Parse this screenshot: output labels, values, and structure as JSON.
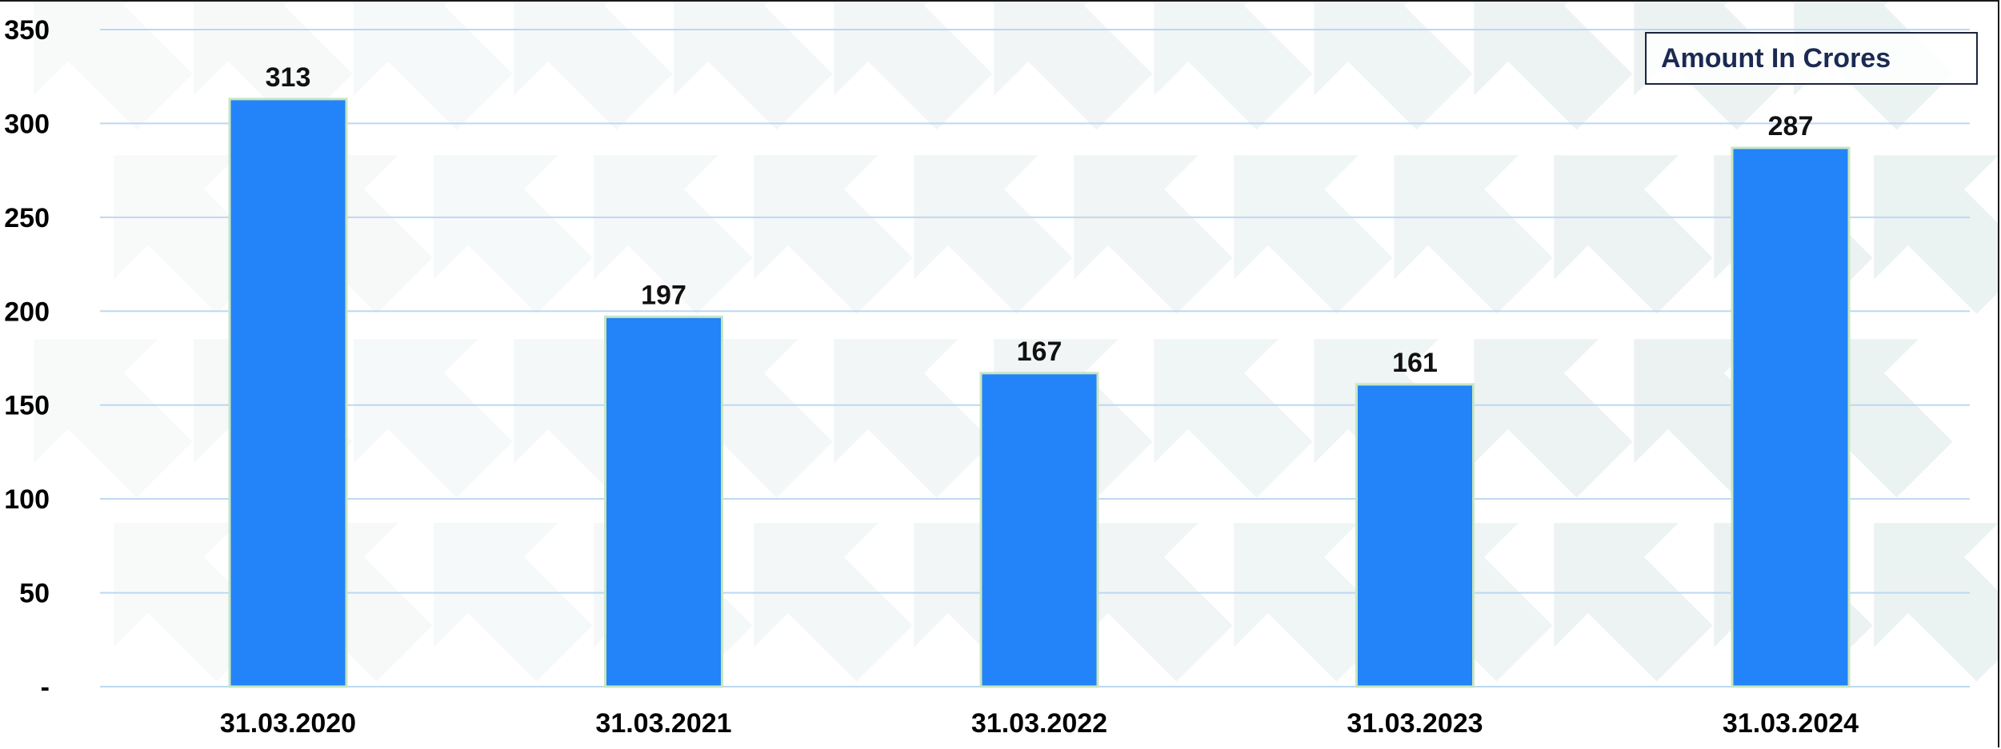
{
  "chart_data": {
    "type": "bar",
    "categories": [
      "31.03.2020",
      "31.03.2021",
      "31.03.2022",
      "31.03.2023",
      "31.03.2024"
    ],
    "values": [
      313,
      197,
      167,
      161,
      287
    ],
    "data_labels": [
      "313",
      "197",
      "167",
      "161",
      "287"
    ],
    "yticks": [
      0,
      50,
      100,
      150,
      200,
      250,
      300,
      350
    ],
    "ytick_labels": [
      "-",
      "50",
      "100",
      "150",
      "200",
      "250",
      "300",
      "350"
    ],
    "ylim": [
      0,
      350
    ],
    "legend": "Amount In Crores",
    "legend_position": "top-right",
    "grid": true,
    "colors": {
      "bar": "#2383f8",
      "bar_edge": "#c8e6c0",
      "grid": "#bcd8f2",
      "background_arrows": "#e3ecec"
    }
  }
}
